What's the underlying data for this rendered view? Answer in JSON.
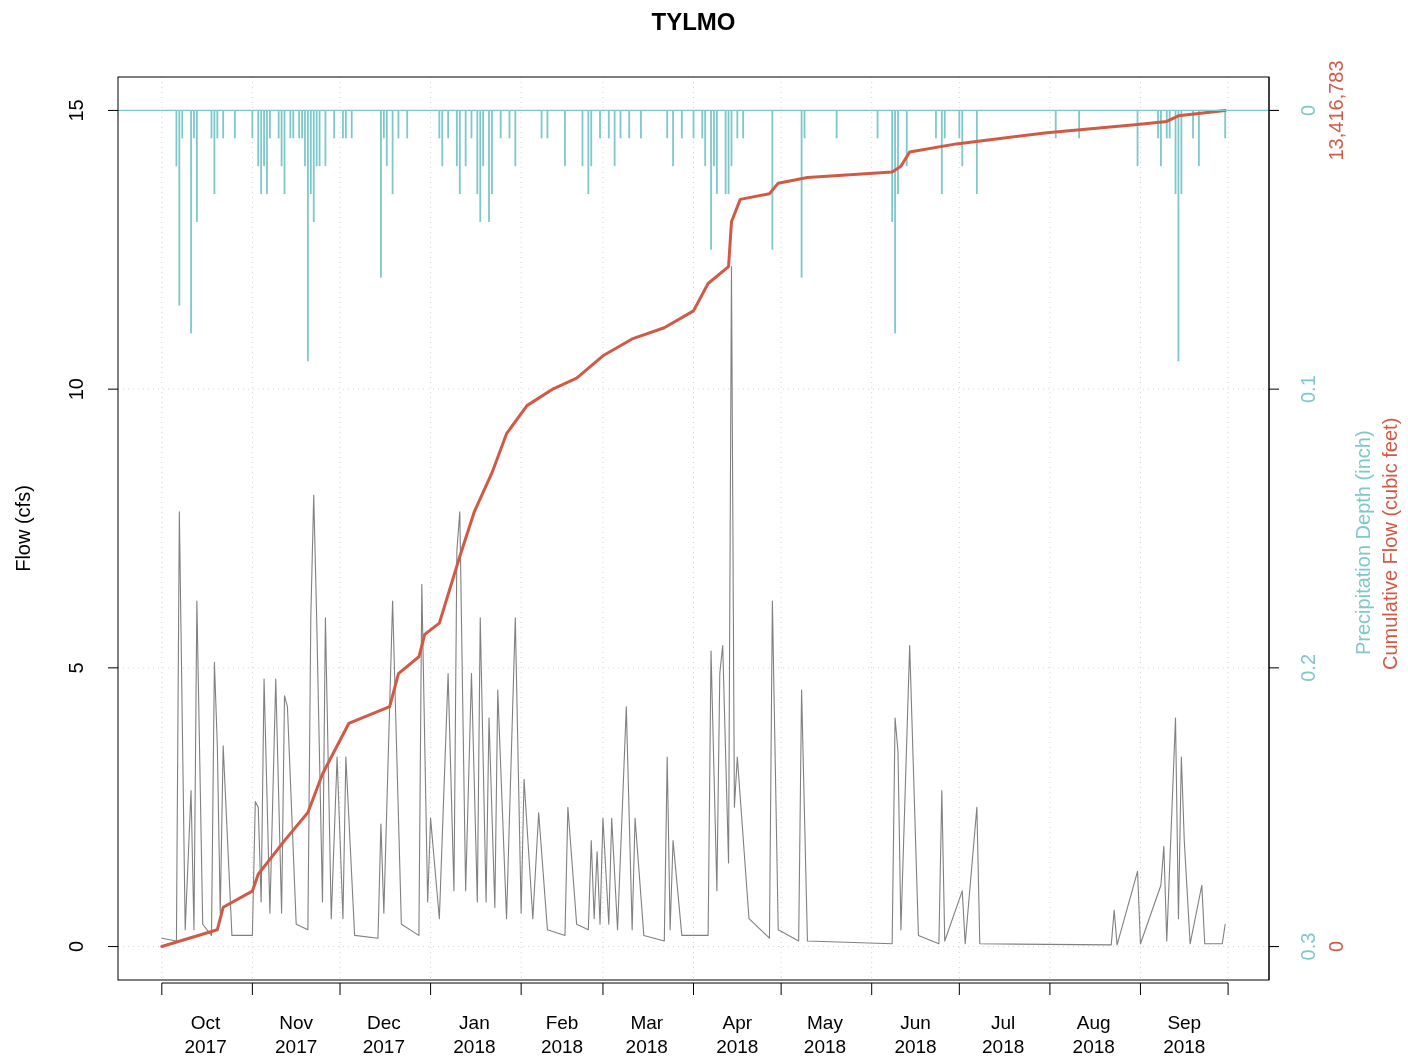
{
  "chart_data": {
    "type": "line",
    "title": "TYLMO",
    "ylabel": "Flow (cfs)",
    "y2label": "Precipitation Depth (inch)",
    "y3label": "Cumulative Flow (cubic feet)",
    "grid": true,
    "xlim": [
      "2017-09-16",
      "2018-10-15"
    ],
    "xticks": [
      {
        "value": "2017-10-01",
        "label": null
      },
      {
        "value": "2017-11-01",
        "label": null
      },
      {
        "value": "2017-12-01",
        "label": null
      },
      {
        "value": "2018-01-01",
        "label": null
      },
      {
        "value": "2018-02-01",
        "label": null
      },
      {
        "value": "2018-03-01",
        "label": null
      },
      {
        "value": "2018-04-01",
        "label": null
      },
      {
        "value": "2018-05-01",
        "label": null
      },
      {
        "value": "2018-06-01",
        "label": null
      },
      {
        "value": "2018-07-01",
        "label": null
      },
      {
        "value": "2018-08-01",
        "label": null
      },
      {
        "value": "2018-09-01",
        "label": null
      },
      {
        "value": "2018-10-01",
        "label": null
      },
      {
        "value": "2017-10-16",
        "label": "Oct\n2017"
      },
      {
        "value": "2017-11-16",
        "label": "Nov\n2017"
      },
      {
        "value": "2017-12-16",
        "label": "Dec\n2017"
      },
      {
        "value": "2018-01-16",
        "label": "Jan\n2018"
      },
      {
        "value": "2018-02-15",
        "label": "Feb\n2018"
      },
      {
        "value": "2018-03-16",
        "label": "Mar\n2018"
      },
      {
        "value": "2018-04-16",
        "label": "Apr\n2018"
      },
      {
        "value": "2018-05-16",
        "label": "May\n2018"
      },
      {
        "value": "2018-06-16",
        "label": "Jun\n2018"
      },
      {
        "value": "2018-07-16",
        "label": "Jul\n2018"
      },
      {
        "value": "2018-08-16",
        "label": "Aug\n2018"
      },
      {
        "value": "2018-09-16",
        "label": "Sep\n2018"
      }
    ],
    "ylim": [
      -0.6,
      15.6
    ],
    "yticks": [
      0,
      5,
      10,
      15
    ],
    "ref_lines": [
      {
        "axis": "y2",
        "value": 0,
        "color": "#7ec8cc"
      }
    ],
    "y2lim": [
      0.312,
      -0.012
    ],
    "y2ticks": [
      0,
      0.1,
      0.2,
      0.3
    ],
    "y3lim": [
      -536671,
      13953451
    ],
    "y3ticks": [
      0,
      {
        "value": 13416783,
        "label": "13,416,783"
      }
    ],
    "series": [
      {
        "type": "bar",
        "axis": "y2",
        "color": "#7ec8cc",
        "x": [
          "2017-10-06",
          "2017-10-07",
          "2017-10-08",
          "2017-10-11",
          "2017-10-12",
          "2017-10-13",
          "2017-10-18",
          "2017-10-19",
          "2017-10-20",
          "2017-10-22",
          "2017-10-26",
          "2017-11-01",
          "2017-11-03",
          "2017-11-04",
          "2017-11-05",
          "2017-11-06",
          "2017-11-07",
          "2017-11-10",
          "2017-11-11",
          "2017-11-12",
          "2017-11-14",
          "2017-11-15",
          "2017-11-17",
          "2017-11-18",
          "2017-11-19",
          "2017-11-20",
          "2017-11-21",
          "2017-11-22",
          "2017-11-23",
          "2017-11-24",
          "2017-11-26",
          "2017-11-29",
          "2017-12-02",
          "2017-12-03",
          "2017-12-05",
          "2017-12-15",
          "2017-12-16",
          "2017-12-17",
          "2017-12-19",
          "2017-12-21",
          "2017-12-24",
          "2018-01-04",
          "2018-01-05",
          "2018-01-07",
          "2018-01-10",
          "2018-01-11",
          "2018-01-13",
          "2018-01-15",
          "2018-01-17",
          "2018-01-18",
          "2018-01-19",
          "2018-01-21",
          "2018-01-22",
          "2018-01-25",
          "2018-01-28",
          "2018-01-30",
          "2018-02-08",
          "2018-02-10",
          "2018-02-16",
          "2018-02-22",
          "2018-02-24",
          "2018-02-25",
          "2018-02-28",
          "2018-03-03",
          "2018-03-05",
          "2018-03-07",
          "2018-03-10",
          "2018-03-14",
          "2018-03-23",
          "2018-03-25",
          "2018-03-28",
          "2018-04-01",
          "2018-04-04",
          "2018-04-05",
          "2018-04-07",
          "2018-04-08",
          "2018-04-09",
          "2018-04-12",
          "2018-04-13",
          "2018-04-14",
          "2018-04-16",
          "2018-04-18",
          "2018-04-28",
          "2018-05-08",
          "2018-05-09",
          "2018-05-20",
          "2018-06-03",
          "2018-06-08",
          "2018-06-09",
          "2018-06-10",
          "2018-06-13",
          "2018-06-23",
          "2018-06-25",
          "2018-06-26",
          "2018-07-01",
          "2018-07-02",
          "2018-07-07",
          "2018-08-03",
          "2018-08-11",
          "2018-08-31",
          "2018-09-07",
          "2018-09-08",
          "2018-09-10",
          "2018-09-11",
          "2018-09-13",
          "2018-09-14",
          "2018-09-15",
          "2018-09-19",
          "2018-09-21",
          "2018-09-30"
        ],
        "values": [
          0.02,
          0.07,
          0.01,
          0.08,
          0.01,
          0.04,
          0.01,
          0.03,
          0.01,
          0.01,
          0.01,
          0.01,
          0.02,
          0.03,
          0.02,
          0.03,
          0.01,
          0.01,
          0.02,
          0.03,
          0.01,
          0.01,
          0.01,
          0.01,
          0.02,
          0.09,
          0.03,
          0.04,
          0.02,
          0.02,
          0.02,
          0.01,
          0.01,
          0.01,
          0.01,
          0.06,
          0.01,
          0.02,
          0.03,
          0.01,
          0.01,
          0.01,
          0.02,
          0.01,
          0.02,
          0.03,
          0.02,
          0.01,
          0.03,
          0.04,
          0.02,
          0.04,
          0.03,
          0.01,
          0.01,
          0.02,
          0.01,
          0.01,
          0.02,
          0.02,
          0.03,
          0.02,
          0.01,
          0.01,
          0.02,
          0.01,
          0.01,
          0.01,
          0.01,
          0.02,
          0.01,
          0.01,
          0.01,
          0.02,
          0.05,
          0.02,
          0.03,
          0.03,
          0.03,
          0.02,
          0.01,
          0.01,
          0.05,
          0.06,
          0.01,
          0.01,
          0.01,
          0.04,
          0.08,
          0.03,
          0.02,
          0.01,
          0.03,
          0.01,
          0.01,
          0.02,
          0.03,
          0.01,
          0.01,
          0.02,
          0.01,
          0.02,
          0.01,
          0.01,
          0.03,
          0.09,
          0.03,
          0.01,
          0.02,
          0.01
        ]
      },
      {
        "axis": "y",
        "color": "#808080",
        "x": [
          "2017-10-01",
          "2017-10-06",
          "2017-10-07",
          "2017-10-09",
          "2017-10-11",
          "2017-10-12",
          "2017-10-13",
          "2017-10-15",
          "2017-10-18",
          "2017-10-19",
          "2017-10-20",
          "2017-10-21",
          "2017-10-22",
          "2017-10-25",
          "2017-11-01",
          "2017-11-02",
          "2017-11-03",
          "2017-11-04",
          "2017-11-05",
          "2017-11-07",
          "2017-11-09",
          "2017-11-11",
          "2017-11-12",
          "2017-11-13",
          "2017-11-16",
          "2017-11-20",
          "2017-11-21",
          "2017-11-22",
          "2017-11-23",
          "2017-11-25",
          "2017-11-26",
          "2017-11-28",
          "2017-11-30",
          "2017-12-02",
          "2017-12-03",
          "2017-12-06",
          "2017-12-14",
          "2017-12-15",
          "2017-12-16",
          "2017-12-19",
          "2017-12-22",
          "2017-12-28",
          "2017-12-29",
          "2017-12-31",
          "2018-01-01",
          "2018-01-04",
          "2018-01-07",
          "2018-01-09",
          "2018-01-10",
          "2018-01-11",
          "2018-01-13",
          "2018-01-15",
          "2018-01-17",
          "2018-01-18",
          "2018-01-20",
          "2018-01-21",
          "2018-01-23",
          "2018-01-24",
          "2018-01-27",
          "2018-01-30",
          "2018-02-01",
          "2018-02-02",
          "2018-02-05",
          "2018-02-07",
          "2018-02-10",
          "2018-02-16",
          "2018-02-17",
          "2018-02-20",
          "2018-02-24",
          "2018-02-25",
          "2018-02-26",
          "2018-02-27",
          "2018-02-28",
          "2018-03-01",
          "2018-03-03",
          "2018-03-04",
          "2018-03-06",
          "2018-03-09",
          "2018-03-11",
          "2018-03-12",
          "2018-03-15",
          "2018-03-22",
          "2018-03-23",
          "2018-03-24",
          "2018-03-25",
          "2018-03-28",
          "2018-04-06",
          "2018-04-07",
          "2018-04-09",
          "2018-04-10",
          "2018-04-11",
          "2018-04-13",
          "2018-04-14",
          "2018-04-15",
          "2018-04-16",
          "2018-04-20",
          "2018-04-27",
          "2018-04-28",
          "2018-04-30",
          "2018-05-07",
          "2018-05-08",
          "2018-05-10",
          "2018-06-08",
          "2018-06-09",
          "2018-06-10",
          "2018-06-11",
          "2018-06-14",
          "2018-06-17",
          "2018-06-24",
          "2018-06-25",
          "2018-06-26",
          "2018-07-02",
          "2018-07-03",
          "2018-07-07",
          "2018-07-08",
          "2018-08-22",
          "2018-08-23",
          "2018-08-24",
          "2018-08-31",
          "2018-09-01",
          "2018-09-08",
          "2018-09-09",
          "2018-09-10",
          "2018-09-13",
          "2018-09-14",
          "2018-09-15",
          "2018-09-16",
          "2018-09-18",
          "2018-09-22",
          "2018-09-23",
          "2018-09-29",
          "2018-09-30"
        ],
        "values": [
          0.15,
          0.1,
          7.8,
          0.3,
          2.8,
          0.3,
          6.2,
          0.4,
          0.2,
          5.1,
          3.6,
          0.6,
          3.6,
          0.2,
          0.2,
          2.6,
          2.5,
          0.8,
          4.8,
          0.6,
          4.8,
          0.6,
          4.5,
          4.3,
          0.4,
          0.3,
          5.9,
          8.1,
          5.9,
          0.8,
          5.9,
          0.5,
          3.4,
          0.5,
          3.4,
          0.2,
          0.15,
          2.2,
          0.6,
          6.2,
          0.4,
          0.2,
          6.5,
          0.8,
          2.3,
          0.5,
          4.9,
          1.0,
          7.1,
          7.8,
          1.0,
          4.9,
          0.8,
          5.9,
          0.8,
          4.1,
          0.7,
          4.6,
          0.5,
          5.9,
          0.6,
          3.0,
          0.5,
          2.4,
          0.3,
          0.2,
          2.5,
          0.4,
          0.3,
          1.9,
          0.5,
          1.7,
          0.4,
          2.3,
          0.4,
          2.3,
          0.3,
          4.3,
          0.3,
          2.3,
          0.2,
          0.1,
          3.4,
          0.3,
          1.9,
          0.2,
          0.2,
          5.3,
          1.0,
          4.9,
          5.4,
          1.5,
          12.2,
          2.5,
          3.4,
          0.5,
          0.15,
          6.2,
          0.3,
          0.1,
          4.6,
          0.1,
          0.05,
          4.1,
          3.5,
          0.3,
          5.4,
          0.2,
          0.05,
          2.8,
          0.1,
          1.0,
          0.05,
          2.5,
          0.05,
          0.03,
          0.65,
          0.03,
          1.35,
          0.05,
          1.1,
          1.8,
          0.1,
          4.1,
          0.5,
          3.4,
          1.9,
          0.05,
          1.1,
          0.05,
          0.05,
          0.4
        ]
      },
      {
        "axis": "y3",
        "color": "#d05a45",
        "x": [
          "2017-10-01",
          "2017-10-20",
          "2017-10-22",
          "2017-11-01",
          "2017-11-03",
          "2017-11-12",
          "2017-11-20",
          "2017-11-25",
          "2017-12-01",
          "2017-12-04",
          "2017-12-18",
          "2017-12-21",
          "2017-12-28",
          "2017-12-30",
          "2018-01-04",
          "2018-01-11",
          "2018-01-16",
          "2018-01-22",
          "2018-01-27",
          "2018-02-03",
          "2018-02-12",
          "2018-02-20",
          "2018-03-01",
          "2018-03-11",
          "2018-03-22",
          "2018-04-01",
          "2018-04-06",
          "2018-04-13",
          "2018-04-14",
          "2018-04-17",
          "2018-04-27",
          "2018-04-30",
          "2018-05-10",
          "2018-06-08",
          "2018-06-11",
          "2018-06-14",
          "2018-06-30",
          "2018-07-31",
          "2018-08-31",
          "2018-09-10",
          "2018-09-14",
          "2018-09-30"
        ],
        "values": [
          0,
          270000,
          630000,
          890000,
          1160000,
          1700000,
          2150000,
          2770000,
          3310000,
          3580000,
          3850000,
          4380000,
          4650000,
          5010000,
          5190000,
          6260000,
          6980000,
          7600000,
          8230000,
          8680000,
          8950000,
          9120000,
          9480000,
          9750000,
          9930000,
          10200000,
          10640000,
          10910000,
          11630000,
          11990000,
          12080000,
          12250000,
          12340000,
          12430000,
          12520000,
          12750000,
          12880000,
          13060000,
          13190000,
          13240000,
          13330000,
          13416783
        ]
      }
    ]
  }
}
